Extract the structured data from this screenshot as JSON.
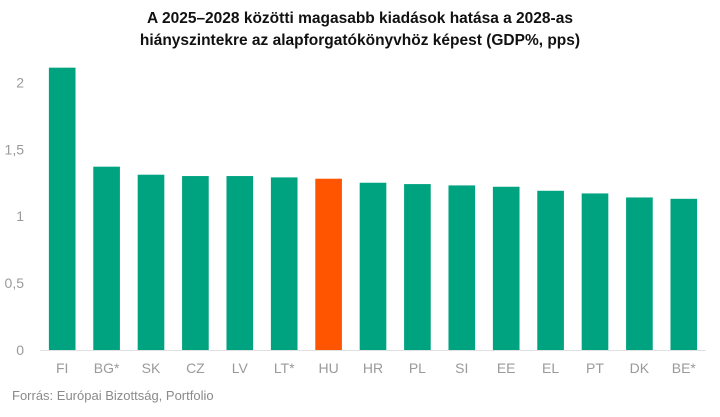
{
  "chart_data": {
    "type": "bar",
    "title_lines": [
      "A 2025–2028 közötti magasabb kiadások hatása a 2028-as",
      "hiányszintekre az alapforgatókönyvhöz képest (GDP%, pps)"
    ],
    "categories": [
      "FI",
      "BG*",
      "SK",
      "CZ",
      "LV",
      "LT*",
      "HU",
      "HR",
      "PL",
      "SI",
      "EE",
      "EL",
      "PT",
      "DK",
      "BE*"
    ],
    "values": [
      2.11,
      1.37,
      1.31,
      1.3,
      1.3,
      1.29,
      1.28,
      1.25,
      1.24,
      1.23,
      1.22,
      1.19,
      1.17,
      1.14,
      1.13
    ],
    "highlight_category": "HU",
    "ylim": [
      0,
      2.1
    ],
    "yticks": [
      0,
      0.5,
      1,
      1.5,
      2
    ],
    "ytick_labels": [
      "0",
      "0,5",
      "1",
      "1,5",
      "2"
    ],
    "xlabel": "",
    "ylabel": "",
    "colors": {
      "bar": "#00a37f",
      "highlight": "#ff5500",
      "baseline": "#e0e0e0"
    }
  },
  "source": "Forrás: Európai Bizottság, Portfolio"
}
